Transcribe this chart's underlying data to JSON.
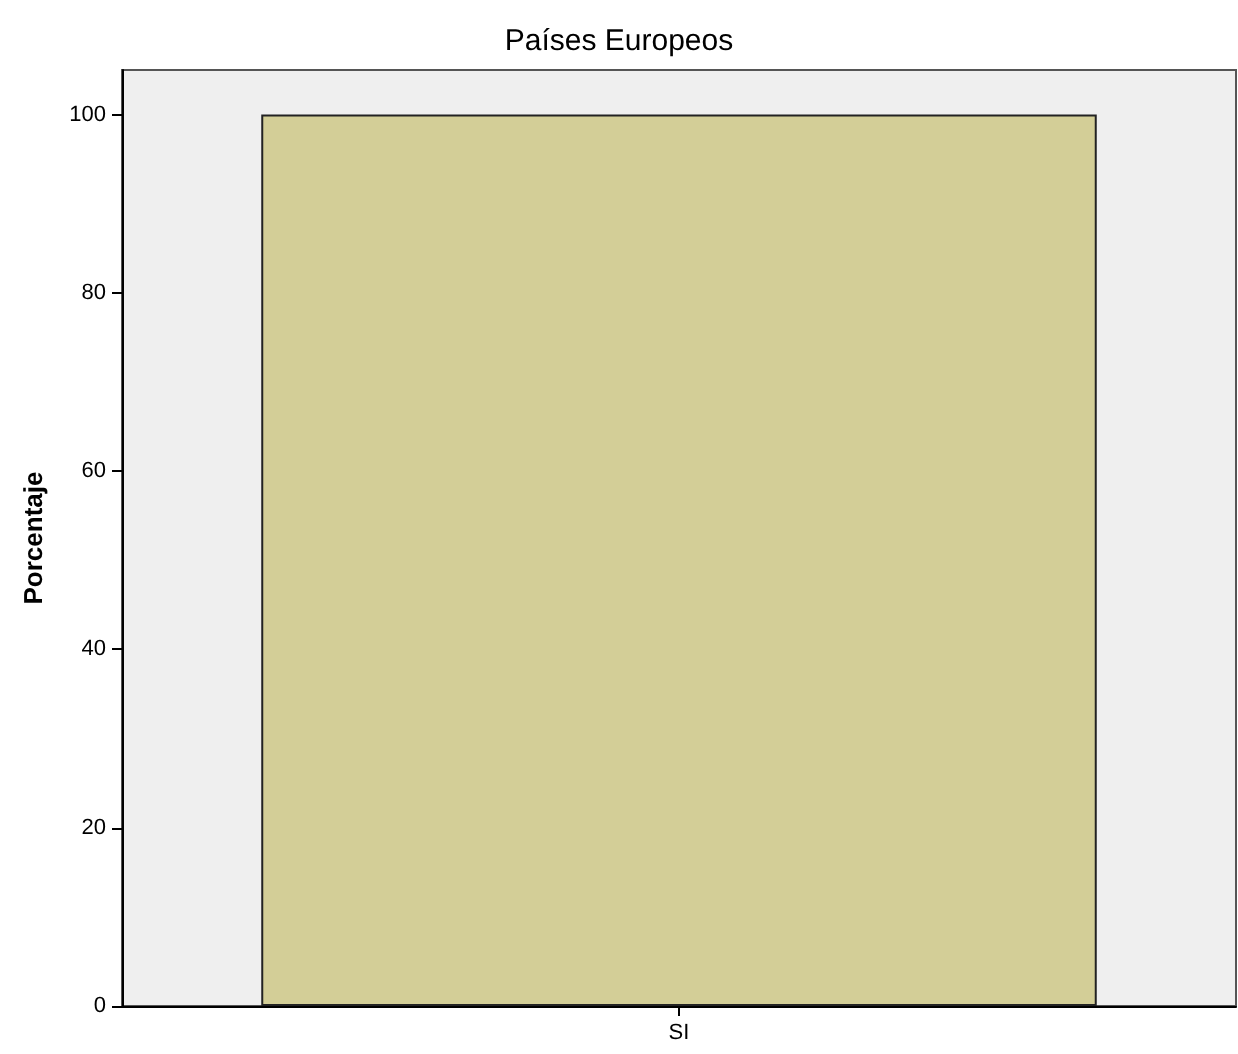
{
  "chart_data": {
    "type": "bar",
    "title": "Países Europeos",
    "ylabel": "Porcentaje",
    "categories": [
      "SI"
    ],
    "values": [
      100
    ],
    "color": "#d3ce97",
    "ylim": [
      0,
      105
    ],
    "yticks": [
      0,
      20,
      40,
      60,
      80,
      100
    ],
    "grid": false
  }
}
